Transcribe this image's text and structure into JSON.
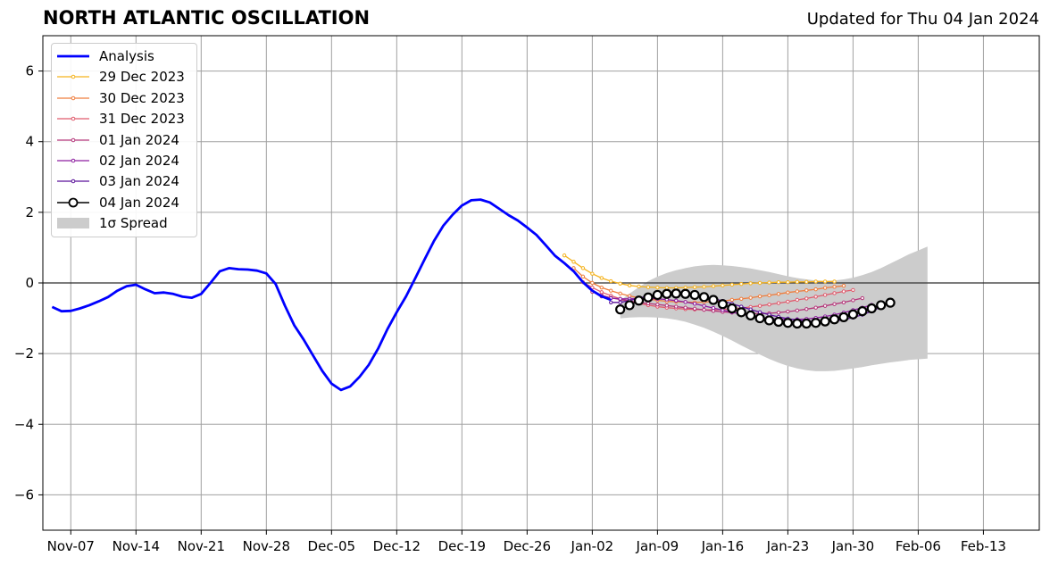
{
  "header": {
    "title": "NORTH ATLANTIC OSCILLATION",
    "updated": "Updated for Thu 04 Jan 2024"
  },
  "chart_data": {
    "type": "line",
    "title": "NORTH ATLANTIC OSCILLATION",
    "subtitle": "Updated for Thu 04 Jan 2024",
    "xlabel": "",
    "ylabel": "",
    "xlim": [
      "2023-11-04",
      "2024-02-19"
    ],
    "ylim": [
      -7,
      7
    ],
    "grid": true,
    "legend_position": "top-left",
    "x_ticks": [
      "Nov-07",
      "Nov-14",
      "Nov-21",
      "Nov-28",
      "Dec-05",
      "Dec-12",
      "Dec-19",
      "Dec-26",
      "Jan-02",
      "Jan-09",
      "Jan-16",
      "Jan-23",
      "Jan-30",
      "Feb-06",
      "Feb-13"
    ],
    "x_tick_dates": [
      "2023-11-07",
      "2023-11-14",
      "2023-11-21",
      "2023-11-28",
      "2023-12-05",
      "2023-12-12",
      "2023-12-19",
      "2023-12-26",
      "2024-01-02",
      "2024-01-09",
      "2024-01-16",
      "2024-01-23",
      "2024-01-30",
      "2024-02-06",
      "2024-02-13"
    ],
    "y_ticks": [
      6,
      4,
      2,
      0,
      -2,
      -4,
      -6
    ],
    "y_tick_labels": [
      "6",
      "4",
      "2",
      "0",
      "−2",
      "−4",
      "−6"
    ],
    "analysis": {
      "name": "Analysis",
      "color": "#0000ff",
      "start": "2023-11-05",
      "values": [
        -0.68,
        -0.8,
        -0.79,
        -0.72,
        -0.63,
        -0.52,
        -0.4,
        -0.22,
        -0.09,
        -0.05,
        -0.18,
        -0.29,
        -0.27,
        -0.31,
        -0.39,
        -0.42,
        -0.31,
        0.0,
        0.33,
        0.42,
        0.39,
        0.38,
        0.35,
        0.27,
        -0.03,
        -0.65,
        -1.2,
        -1.6,
        -2.05,
        -2.49,
        -2.85,
        -3.03,
        -2.93,
        -2.66,
        -2.32,
        -1.86,
        -1.31,
        -0.83,
        -0.38,
        0.14,
        0.67,
        1.19,
        1.62,
        1.93,
        2.19,
        2.34,
        2.36,
        2.28,
        2.1,
        1.92,
        1.77,
        1.57,
        1.36,
        1.07,
        0.77,
        0.56,
        0.33,
        0.02,
        -0.22,
        -0.38,
        -0.48
      ]
    },
    "forecasts": [
      {
        "name": "29 Dec 2023",
        "color": "#f5b31e",
        "start": "2023-12-30",
        "values": [
          0.78,
          0.6,
          0.42,
          0.26,
          0.14,
          0.05,
          -0.02,
          -0.07,
          -0.1,
          -0.12,
          -0.13,
          -0.14,
          -0.14,
          -0.13,
          -0.12,
          -0.11,
          -0.09,
          -0.07,
          -0.05,
          -0.03,
          -0.01,
          0.0,
          0.01,
          0.02,
          0.02,
          0.03,
          0.03,
          0.04,
          0.04,
          0.04
        ]
      },
      {
        "name": "30 Dec 2023",
        "color": "#ef7d3d",
        "start": "2023-12-31",
        "values": [
          0.42,
          0.18,
          0.0,
          -0.13,
          -0.22,
          -0.3,
          -0.37,
          -0.42,
          -0.46,
          -0.49,
          -0.52,
          -0.53,
          -0.54,
          -0.55,
          -0.54,
          -0.53,
          -0.51,
          -0.48,
          -0.45,
          -0.42,
          -0.38,
          -0.35,
          -0.31,
          -0.27,
          -0.24,
          -0.21,
          -0.18,
          -0.14,
          -0.11,
          -0.08
        ]
      },
      {
        "name": "31 Dec 2023",
        "color": "#e05a6c",
        "start": "2024-01-01",
        "values": [
          0.02,
          -0.13,
          -0.26,
          -0.36,
          -0.45,
          -0.52,
          -0.58,
          -0.63,
          -0.67,
          -0.7,
          -0.72,
          -0.74,
          -0.75,
          -0.76,
          -0.76,
          -0.75,
          -0.73,
          -0.71,
          -0.68,
          -0.65,
          -0.61,
          -0.57,
          -0.53,
          -0.48,
          -0.44,
          -0.39,
          -0.34,
          -0.29,
          -0.24,
          -0.2
        ]
      },
      {
        "name": "01 Jan 2024",
        "color": "#b5367a",
        "start": "2024-01-02",
        "values": [
          -0.25,
          -0.35,
          -0.42,
          -0.47,
          -0.51,
          -0.55,
          -0.58,
          -0.61,
          -0.64,
          -0.67,
          -0.7,
          -0.73,
          -0.76,
          -0.79,
          -0.82,
          -0.84,
          -0.86,
          -0.87,
          -0.87,
          -0.86,
          -0.84,
          -0.81,
          -0.78,
          -0.74,
          -0.7,
          -0.65,
          -0.6,
          -0.55,
          -0.49,
          -0.43
        ]
      },
      {
        "name": "02 Jan 2024",
        "color": "#8d1fa0",
        "start": "2024-01-03",
        "values": [
          -0.38,
          -0.43,
          -0.45,
          -0.45,
          -0.44,
          -0.44,
          -0.45,
          -0.47,
          -0.5,
          -0.54,
          -0.59,
          -0.65,
          -0.71,
          -0.77,
          -0.83,
          -0.88,
          -0.93,
          -0.97,
          -1.0,
          -1.02,
          -1.03,
          -1.03,
          -1.02,
          -0.99,
          -0.95,
          -0.9,
          -0.84,
          -0.77,
          -0.7,
          -0.62
        ]
      },
      {
        "name": "03 Jan 2024",
        "color": "#5a129a",
        "start": "2024-01-04",
        "values": [
          -0.55,
          -0.55,
          -0.5,
          -0.43,
          -0.37,
          -0.32,
          -0.3,
          -0.3,
          -0.31,
          -0.34,
          -0.38,
          -0.44,
          -0.51,
          -0.59,
          -0.67,
          -0.75,
          -0.83,
          -0.9,
          -0.96,
          -1.01,
          -1.05,
          -1.08,
          -1.1,
          -1.1,
          -1.08,
          -1.04,
          -0.98,
          -0.9,
          -0.8,
          -0.68
        ]
      },
      {
        "name": "04 Jan 2024",
        "color": "#000000",
        "marker": "circle",
        "start": "2024-01-05",
        "values": [
          -0.75,
          -0.63,
          -0.5,
          -0.41,
          -0.34,
          -0.31,
          -0.3,
          -0.31,
          -0.34,
          -0.4,
          -0.48,
          -0.6,
          -0.72,
          -0.83,
          -0.92,
          -1.0,
          -1.06,
          -1.1,
          -1.13,
          -1.15,
          -1.15,
          -1.13,
          -1.09,
          -1.03,
          -0.97,
          -0.89,
          -0.8,
          -0.72,
          -0.63,
          -0.56
        ]
      }
    ],
    "spread": {
      "name": "1σ Spread",
      "color": "#cccccc",
      "start": "2024-01-05",
      "upper": [
        -0.5,
        -0.3,
        -0.12,
        0.05,
        0.18,
        0.28,
        0.36,
        0.42,
        0.47,
        0.5,
        0.51,
        0.5,
        0.48,
        0.45,
        0.41,
        0.36,
        0.31,
        0.25,
        0.19,
        0.14,
        0.1,
        0.07,
        0.06,
        0.07,
        0.1,
        0.15,
        0.22,
        0.31,
        0.42,
        0.55,
        0.68,
        0.81,
        0.92,
        1.03
      ],
      "lower": [
        -1.0,
        -0.98,
        -0.97,
        -0.97,
        -0.98,
        -1.0,
        -1.04,
        -1.1,
        -1.18,
        -1.27,
        -1.38,
        -1.5,
        -1.63,
        -1.77,
        -1.9,
        -2.03,
        -2.15,
        -2.26,
        -2.35,
        -2.42,
        -2.47,
        -2.5,
        -2.5,
        -2.49,
        -2.46,
        -2.42,
        -2.38,
        -2.33,
        -2.29,
        -2.25,
        -2.22,
        -2.18,
        -2.16,
        -2.14
      ]
    }
  }
}
